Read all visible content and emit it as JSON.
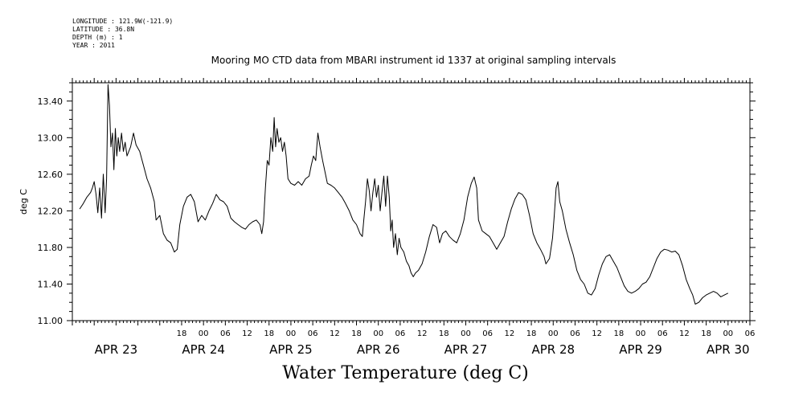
{
  "meta": {
    "longitude": "LONGITUDE : 121.9W(-121.9)",
    "latitude": "LATITUDE : 36.8N",
    "depth": "DEPTH (m) : 1",
    "year": "YEAR : 2011"
  },
  "chart_data": {
    "type": "line",
    "title": "Mooring MO CTD data from MBARI instrument id 1337 at original sampling intervals",
    "xlabel": "Water Temperature (deg C)",
    "ylabel": "deg C",
    "ylim": [
      11.0,
      13.6
    ],
    "yticks": [
      "11.00",
      "11.40",
      "11.80",
      "12.20",
      "12.60",
      "13.00",
      "13.40"
    ],
    "xlim_hours": [
      -12,
      174
    ],
    "hour_tick_labels": [
      {
        "h": 18,
        "label": "18"
      },
      {
        "h": 24,
        "label": "00"
      },
      {
        "h": 30,
        "label": "06"
      },
      {
        "h": 36,
        "label": "12"
      },
      {
        "h": 42,
        "label": "18"
      },
      {
        "h": 48,
        "label": "00"
      },
      {
        "h": 54,
        "label": "06"
      },
      {
        "h": 60,
        "label": "12"
      },
      {
        "h": 66,
        "label": "18"
      },
      {
        "h": 72,
        "label": "00"
      },
      {
        "h": 78,
        "label": "06"
      },
      {
        "h": 84,
        "label": "12"
      },
      {
        "h": 90,
        "label": "18"
      },
      {
        "h": 96,
        "label": "00"
      },
      {
        "h": 102,
        "label": "06"
      },
      {
        "h": 108,
        "label": "12"
      },
      {
        "h": 114,
        "label": "18"
      },
      {
        "h": 120,
        "label": "00"
      },
      {
        "h": 126,
        "label": "06"
      },
      {
        "h": 132,
        "label": "12"
      },
      {
        "h": 138,
        "label": "18"
      },
      {
        "h": 144,
        "label": "00"
      },
      {
        "h": 150,
        "label": "06"
      },
      {
        "h": 156,
        "label": "12"
      },
      {
        "h": 162,
        "label": "18"
      },
      {
        "h": 168,
        "label": "00"
      },
      {
        "h": 174,
        "label": "06"
      },
      {
        "h": 180,
        "label": "12"
      }
    ],
    "day_labels": [
      {
        "h": 0,
        "label": "APR 23"
      },
      {
        "h": 24,
        "label": "APR 24"
      },
      {
        "h": 48,
        "label": "APR 25"
      },
      {
        "h": 72,
        "label": "APR 26"
      },
      {
        "h": 96,
        "label": "APR 27"
      },
      {
        "h": 120,
        "label": "APR 28"
      },
      {
        "h": 144,
        "label": "APR 29"
      },
      {
        "h": 168,
        "label": "APR 30"
      }
    ],
    "series": [
      {
        "color": "#000000",
        "points": [
          [
            -10.0,
            12.22
          ],
          [
            -9.0,
            12.28
          ],
          [
            -8.0,
            12.35
          ],
          [
            -7.0,
            12.4
          ],
          [
            -6.5,
            12.45
          ],
          [
            -6.0,
            12.52
          ],
          [
            -5.5,
            12.38
          ],
          [
            -5.0,
            12.18
          ],
          [
            -4.5,
            12.45
          ],
          [
            -4.0,
            12.12
          ],
          [
            -3.5,
            12.6
          ],
          [
            -3.0,
            12.18
          ],
          [
            -2.6,
            12.55
          ],
          [
            -2.2,
            13.58
          ],
          [
            -1.8,
            13.35
          ],
          [
            -1.4,
            12.9
          ],
          [
            -1.0,
            13.05
          ],
          [
            -0.6,
            12.65
          ],
          [
            -0.2,
            13.1
          ],
          [
            0.2,
            12.8
          ],
          [
            0.6,
            13.0
          ],
          [
            1.0,
            12.85
          ],
          [
            1.5,
            13.05
          ],
          [
            2.0,
            12.85
          ],
          [
            2.5,
            12.95
          ],
          [
            3.0,
            12.8
          ],
          [
            4.0,
            12.9
          ],
          [
            4.8,
            13.05
          ],
          [
            5.5,
            12.92
          ],
          [
            6.5,
            12.85
          ],
          [
            7.5,
            12.7
          ],
          [
            8.5,
            12.55
          ],
          [
            9.5,
            12.45
          ],
          [
            10.5,
            12.3
          ],
          [
            11.0,
            12.1
          ],
          [
            12.0,
            12.15
          ],
          [
            13.0,
            11.95
          ],
          [
            14.0,
            11.88
          ],
          [
            15.0,
            11.85
          ],
          [
            16.0,
            11.75
          ],
          [
            16.8,
            11.78
          ],
          [
            17.5,
            12.05
          ],
          [
            18.5,
            12.25
          ],
          [
            19.5,
            12.35
          ],
          [
            20.5,
            12.38
          ],
          [
            21.5,
            12.3
          ],
          [
            22.5,
            12.08
          ],
          [
            23.5,
            12.15
          ],
          [
            24.5,
            12.1
          ],
          [
            25.5,
            12.2
          ],
          [
            26.5,
            12.28
          ],
          [
            27.5,
            12.38
          ],
          [
            28.5,
            12.32
          ],
          [
            29.5,
            12.3
          ],
          [
            30.5,
            12.25
          ],
          [
            31.5,
            12.12
          ],
          [
            32.5,
            12.08
          ],
          [
            33.5,
            12.05
          ],
          [
            34.5,
            12.02
          ],
          [
            35.5,
            12.0
          ],
          [
            36.5,
            12.05
          ],
          [
            37.5,
            12.08
          ],
          [
            38.5,
            12.1
          ],
          [
            39.5,
            12.05
          ],
          [
            40.0,
            11.95
          ],
          [
            40.5,
            12.08
          ],
          [
            41.0,
            12.45
          ],
          [
            41.5,
            12.75
          ],
          [
            42.0,
            12.7
          ],
          [
            42.5,
            13.0
          ],
          [
            43.0,
            12.85
          ],
          [
            43.4,
            13.22
          ],
          [
            43.8,
            12.9
          ],
          [
            44.2,
            13.1
          ],
          [
            44.7,
            12.95
          ],
          [
            45.2,
            13.0
          ],
          [
            45.7,
            12.85
          ],
          [
            46.2,
            12.95
          ],
          [
            46.7,
            12.8
          ],
          [
            47.2,
            12.55
          ],
          [
            48.0,
            12.5
          ],
          [
            49.0,
            12.48
          ],
          [
            50.0,
            12.52
          ],
          [
            51.0,
            12.48
          ],
          [
            52.0,
            12.55
          ],
          [
            53.0,
            12.58
          ],
          [
            53.6,
            12.7
          ],
          [
            54.2,
            12.8
          ],
          [
            54.8,
            12.75
          ],
          [
            55.4,
            13.05
          ],
          [
            56.0,
            12.9
          ],
          [
            56.7,
            12.75
          ],
          [
            57.4,
            12.62
          ],
          [
            58.0,
            12.5
          ],
          [
            59.0,
            12.48
          ],
          [
            60.0,
            12.45
          ],
          [
            61.0,
            12.4
          ],
          [
            62.0,
            12.35
          ],
          [
            63.0,
            12.28
          ],
          [
            64.0,
            12.2
          ],
          [
            65.0,
            12.1
          ],
          [
            66.0,
            12.05
          ],
          [
            67.0,
            11.95
          ],
          [
            67.6,
            11.92
          ],
          [
            68.0,
            12.1
          ],
          [
            68.5,
            12.3
          ],
          [
            69.0,
            12.55
          ],
          [
            69.5,
            12.42
          ],
          [
            70.0,
            12.2
          ],
          [
            70.5,
            12.4
          ],
          [
            71.0,
            12.55
          ],
          [
            71.5,
            12.35
          ],
          [
            72.0,
            12.48
          ],
          [
            72.5,
            12.2
          ],
          [
            73.0,
            12.4
          ],
          [
            73.5,
            12.58
          ],
          [
            74.0,
            12.25
          ],
          [
            74.5,
            12.58
          ],
          [
            75.0,
            12.35
          ],
          [
            75.4,
            11.98
          ],
          [
            75.8,
            12.1
          ],
          [
            76.2,
            11.8
          ],
          [
            76.7,
            11.95
          ],
          [
            77.2,
            11.72
          ],
          [
            77.7,
            11.9
          ],
          [
            78.2,
            11.8
          ],
          [
            79.0,
            11.75
          ],
          [
            79.7,
            11.65
          ],
          [
            80.4,
            11.6
          ],
          [
            81.0,
            11.52
          ],
          [
            81.6,
            11.48
          ],
          [
            82.2,
            11.52
          ],
          [
            83.0,
            11.55
          ],
          [
            84.0,
            11.62
          ],
          [
            85.0,
            11.75
          ],
          [
            86.0,
            11.92
          ],
          [
            87.0,
            12.05
          ],
          [
            88.0,
            12.02
          ],
          [
            88.8,
            11.85
          ],
          [
            89.6,
            11.95
          ],
          [
            90.5,
            11.98
          ],
          [
            91.5,
            11.92
          ],
          [
            92.5,
            11.88
          ],
          [
            93.5,
            11.85
          ],
          [
            94.5,
            11.95
          ],
          [
            95.5,
            12.1
          ],
          [
            96.5,
            12.35
          ],
          [
            97.5,
            12.5
          ],
          [
            98.3,
            12.57
          ],
          [
            99.0,
            12.45
          ],
          [
            99.5,
            12.1
          ],
          [
            100.5,
            11.98
          ],
          [
            101.5,
            11.95
          ],
          [
            102.5,
            11.92
          ],
          [
            103.5,
            11.85
          ],
          [
            104.5,
            11.78
          ],
          [
            105.5,
            11.85
          ],
          [
            106.5,
            11.92
          ],
          [
            107.5,
            12.08
          ],
          [
            108.5,
            12.22
          ],
          [
            109.5,
            12.33
          ],
          [
            110.5,
            12.4
          ],
          [
            111.5,
            12.38
          ],
          [
            112.5,
            12.32
          ],
          [
            113.5,
            12.15
          ],
          [
            114.5,
            11.95
          ],
          [
            115.5,
            11.85
          ],
          [
            116.5,
            11.78
          ],
          [
            117.5,
            11.7
          ],
          [
            118.0,
            11.62
          ],
          [
            119.0,
            11.68
          ],
          [
            119.8,
            11.9
          ],
          [
            120.3,
            12.15
          ],
          [
            120.8,
            12.45
          ],
          [
            121.3,
            12.52
          ],
          [
            121.8,
            12.3
          ],
          [
            122.5,
            12.2
          ],
          [
            123.5,
            12.0
          ],
          [
            124.5,
            11.85
          ],
          [
            125.5,
            11.72
          ],
          [
            126.5,
            11.55
          ],
          [
            127.5,
            11.45
          ],
          [
            128.5,
            11.4
          ],
          [
            129.5,
            11.3
          ],
          [
            130.5,
            11.28
          ],
          [
            131.5,
            11.35
          ],
          [
            132.5,
            11.5
          ],
          [
            133.5,
            11.62
          ],
          [
            134.5,
            11.7
          ],
          [
            135.5,
            11.72
          ],
          [
            136.5,
            11.65
          ],
          [
            137.5,
            11.58
          ],
          [
            138.5,
            11.48
          ],
          [
            139.5,
            11.38
          ],
          [
            140.5,
            11.32
          ],
          [
            141.5,
            11.3
          ],
          [
            142.5,
            11.32
          ],
          [
            143.5,
            11.35
          ],
          [
            144.5,
            11.4
          ],
          [
            145.5,
            11.42
          ],
          [
            146.5,
            11.48
          ],
          [
            147.5,
            11.58
          ],
          [
            148.5,
            11.68
          ],
          [
            149.5,
            11.75
          ],
          [
            150.5,
            11.78
          ],
          [
            151.5,
            11.77
          ],
          [
            152.5,
            11.75
          ],
          [
            153.5,
            11.76
          ],
          [
            154.5,
            11.72
          ],
          [
            155.5,
            11.6
          ],
          [
            156.5,
            11.45
          ],
          [
            157.5,
            11.35
          ],
          [
            158.3,
            11.28
          ],
          [
            159.0,
            11.18
          ],
          [
            160.0,
            11.2
          ],
          [
            161.0,
            11.25
          ],
          [
            162.0,
            11.28
          ],
          [
            163.0,
            11.3
          ],
          [
            164.0,
            11.32
          ],
          [
            165.0,
            11.3
          ],
          [
            166.0,
            11.26
          ],
          [
            167.0,
            11.28
          ],
          [
            168.0,
            11.3
          ]
        ]
      }
    ]
  }
}
